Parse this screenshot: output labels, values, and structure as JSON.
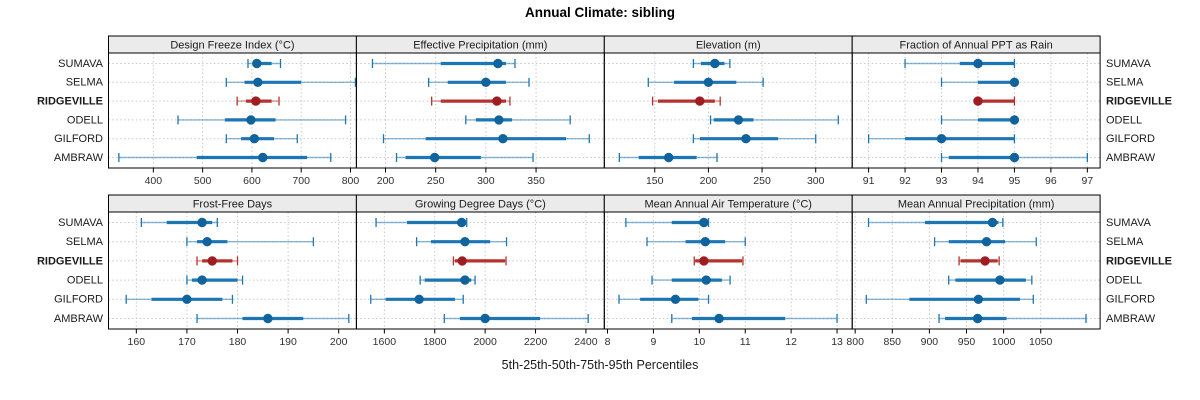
{
  "title": "Annual Climate: sibling",
  "xlabel": "5th-25th-50th-75th-95th Percentiles",
  "sites": [
    "SUMAVA",
    "SELMA",
    "RIDGEVILLE",
    "ODELL",
    "GILFORD",
    "AMBRAW"
  ],
  "highlight_site": "RIDGEVILLE",
  "colors": {
    "blue_main": "#1d76b4",
    "blue_dot": "#10639c",
    "red_main": "#b5332c",
    "red_dot": "#9f1c20",
    "grid": "#c9c9c9",
    "strip_bg": "#ebebeb",
    "border": "#000000",
    "tick_text": "#303030",
    "site_text": "#1a1a1a"
  },
  "chart_data": {
    "type": "dotplot-percentiles",
    "percentile_levels": [
      5,
      25,
      50,
      75,
      95
    ],
    "layout": {
      "rows": 2,
      "cols": 4
    },
    "legend": "thin line = 5th-95th, thick band = 25th-75th, dot = 50th percentile",
    "panels": [
      {
        "title": "Design Freeze Index (°C)",
        "row": 0,
        "col": 0,
        "xlim": [
          309,
          812
        ],
        "ticks": [
          400,
          500,
          600,
          700,
          800
        ],
        "series": [
          {
            "name": "SUMAVA",
            "values": [
              592,
              602,
              610,
              640,
              658
            ]
          },
          {
            "name": "SELMA",
            "values": [
              548,
              585,
              612,
              700,
              810
            ]
          },
          {
            "name": "RIDGEVILLE",
            "values": [
              570,
              588,
              608,
              640,
              655
            ]
          },
          {
            "name": "ODELL",
            "values": [
              450,
              545,
              598,
              648,
              790
            ]
          },
          {
            "name": "GILFORD",
            "values": [
              548,
              578,
              605,
              645,
              692
            ]
          },
          {
            "name": "AMBRAW",
            "values": [
              330,
              488,
              622,
              712,
              760
            ]
          }
        ]
      },
      {
        "title": "Effective Precipitation (mm)",
        "row": 0,
        "col": 1,
        "xlim": [
          171,
          418
        ],
        "ticks": [
          200,
          250,
          300,
          350
        ],
        "series": [
          {
            "name": "SUMAVA",
            "values": [
              187,
              255,
              312,
              320,
              329
            ]
          },
          {
            "name": "SELMA",
            "values": [
              243,
              262,
              300,
              320,
              343
            ]
          },
          {
            "name": "RIDGEVILLE",
            "values": [
              246,
              255,
              311,
              320,
              324
            ]
          },
          {
            "name": "ODELL",
            "values": [
              280,
              290,
              313,
              326,
              384
            ]
          },
          {
            "name": "GILFORD",
            "values": [
              198,
              240,
              317,
              380,
              403
            ]
          },
          {
            "name": "AMBRAW",
            "values": [
              211,
              220,
              249,
              295,
              347
            ]
          }
        ]
      },
      {
        "title": "Elevation (m)",
        "row": 0,
        "col": 2,
        "xlim": [
          103,
          334
        ],
        "ticks": [
          150,
          200,
          250,
          300
        ],
        "series": [
          {
            "name": "SUMAVA",
            "values": [
              186,
              193,
              206,
              215,
              220
            ]
          },
          {
            "name": "SELMA",
            "values": [
              144,
              168,
              200,
              226,
              251
            ]
          },
          {
            "name": "RIDGEVILLE",
            "values": [
              148,
              153,
              192,
              206,
              211
            ]
          },
          {
            "name": "ODELL",
            "values": [
              202,
              205,
              228,
              242,
              321
            ]
          },
          {
            "name": "GILFORD",
            "values": [
              186,
              192,
              235,
              265,
              300
            ]
          },
          {
            "name": "AMBRAW",
            "values": [
              117,
              135,
              163,
              189,
              208
            ]
          }
        ]
      },
      {
        "title": "Fraction of Annual PPT as Rain",
        "row": 0,
        "col": 3,
        "xlim": [
          90.55,
          97.35
        ],
        "ticks": [
          91,
          92,
          93,
          94,
          95,
          96,
          97
        ],
        "series": [
          {
            "name": "SUMAVA",
            "values": [
              92,
              93.5,
              94,
              95,
              95
            ]
          },
          {
            "name": "SELMA",
            "values": [
              93,
              94,
              95,
              95,
              95
            ]
          },
          {
            "name": "RIDGEVILLE",
            "values": [
              94,
              94,
              94,
              95,
              95
            ]
          },
          {
            "name": "ODELL",
            "values": [
              93,
              94,
              95,
              95,
              95
            ]
          },
          {
            "name": "GILFORD",
            "values": [
              91,
              92,
              93,
              95,
              95
            ]
          },
          {
            "name": "AMBRAW",
            "values": [
              93,
              93.2,
              95,
              95,
              97
            ]
          }
        ]
      },
      {
        "title": "Frost-Free Days",
        "row": 1,
        "col": 0,
        "xlim": [
          154.5,
          203.5
        ],
        "ticks": [
          160,
          170,
          180,
          190,
          200
        ],
        "series": [
          {
            "name": "SUMAVA",
            "values": [
              161,
              166,
              173,
              175,
              176
            ]
          },
          {
            "name": "SELMA",
            "values": [
              170,
              172,
              174,
              178,
              195
            ]
          },
          {
            "name": "RIDGEVILLE",
            "values": [
              172,
              173,
              175,
              179,
              180
            ]
          },
          {
            "name": "ODELL",
            "values": [
              170,
              171,
              173,
              180,
              181
            ]
          },
          {
            "name": "GILFORD",
            "values": [
              158,
              163,
              170,
              177,
              179
            ]
          },
          {
            "name": "AMBRAW",
            "values": [
              172,
              181,
              186,
              193,
              202
            ]
          }
        ]
      },
      {
        "title": "Growing Degree Days (°C)",
        "row": 1,
        "col": 1,
        "xlim": [
          1489,
          2473
        ],
        "ticks": [
          1600,
          1800,
          2000,
          2200,
          2400
        ],
        "series": [
          {
            "name": "SUMAVA",
            "values": [
              1567,
              1690,
              1907,
              1915,
              1927
            ]
          },
          {
            "name": "SELMA",
            "values": [
              1728,
              1785,
              1920,
              2020,
              2085
            ]
          },
          {
            "name": "RIDGEVILLE",
            "values": [
              1874,
              1880,
              1909,
              2079,
              2083
            ]
          },
          {
            "name": "ODELL",
            "values": [
              1742,
              1760,
              1920,
              1945,
              1960
            ]
          },
          {
            "name": "GILFORD",
            "values": [
              1546,
              1605,
              1738,
              1880,
              1913
            ]
          },
          {
            "name": "AMBRAW",
            "values": [
              1838,
              1900,
              2000,
              2218,
              2409
            ]
          }
        ]
      },
      {
        "title": "Mean Annual Air Temperature (°C)",
        "row": 1,
        "col": 2,
        "xlim": [
          7.93,
          13.33
        ],
        "ticks": [
          8,
          9,
          10,
          11,
          12,
          13
        ],
        "series": [
          {
            "name": "SUMAVA",
            "values": [
              8.4,
              9.4,
              10.1,
              10.15,
              10.2
            ]
          },
          {
            "name": "SELMA",
            "values": [
              8.86,
              9.7,
              10.13,
              10.56,
              11.0
            ]
          },
          {
            "name": "RIDGEVILLE",
            "values": [
              9.89,
              9.91,
              10.1,
              10.93,
              10.95
            ]
          },
          {
            "name": "ODELL",
            "values": [
              8.97,
              9.4,
              10.15,
              10.49,
              10.67
            ]
          },
          {
            "name": "GILFORD",
            "values": [
              8.25,
              8.71,
              9.48,
              9.98,
              10.2
            ]
          },
          {
            "name": "AMBRAW",
            "values": [
              9.4,
              9.84,
              10.43,
              11.87,
              13.0
            ]
          }
        ]
      },
      {
        "title": "Mean Annual Precipitation (mm)",
        "row": 1,
        "col": 3,
        "xlim": [
          796,
          1130
        ],
        "ticks": [
          800,
          850,
          900,
          950,
          1000,
          1050
        ],
        "series": [
          {
            "name": "SUMAVA",
            "values": [
              818,
              894,
              985,
              993,
              999
            ]
          },
          {
            "name": "SELMA",
            "values": [
              907,
              926,
              977,
              1002,
              1044
            ]
          },
          {
            "name": "RIDGEVILLE",
            "values": [
              940,
              942,
              975,
              992,
              994
            ]
          },
          {
            "name": "ODELL",
            "values": [
              926,
              935,
              995,
              1030,
              1038
            ]
          },
          {
            "name": "GILFORD",
            "values": [
              815,
              873,
              966,
              1022,
              1040
            ]
          },
          {
            "name": "AMBRAW",
            "values": [
              913,
              921,
              965,
              1004,
              1111
            ]
          }
        ]
      }
    ]
  }
}
